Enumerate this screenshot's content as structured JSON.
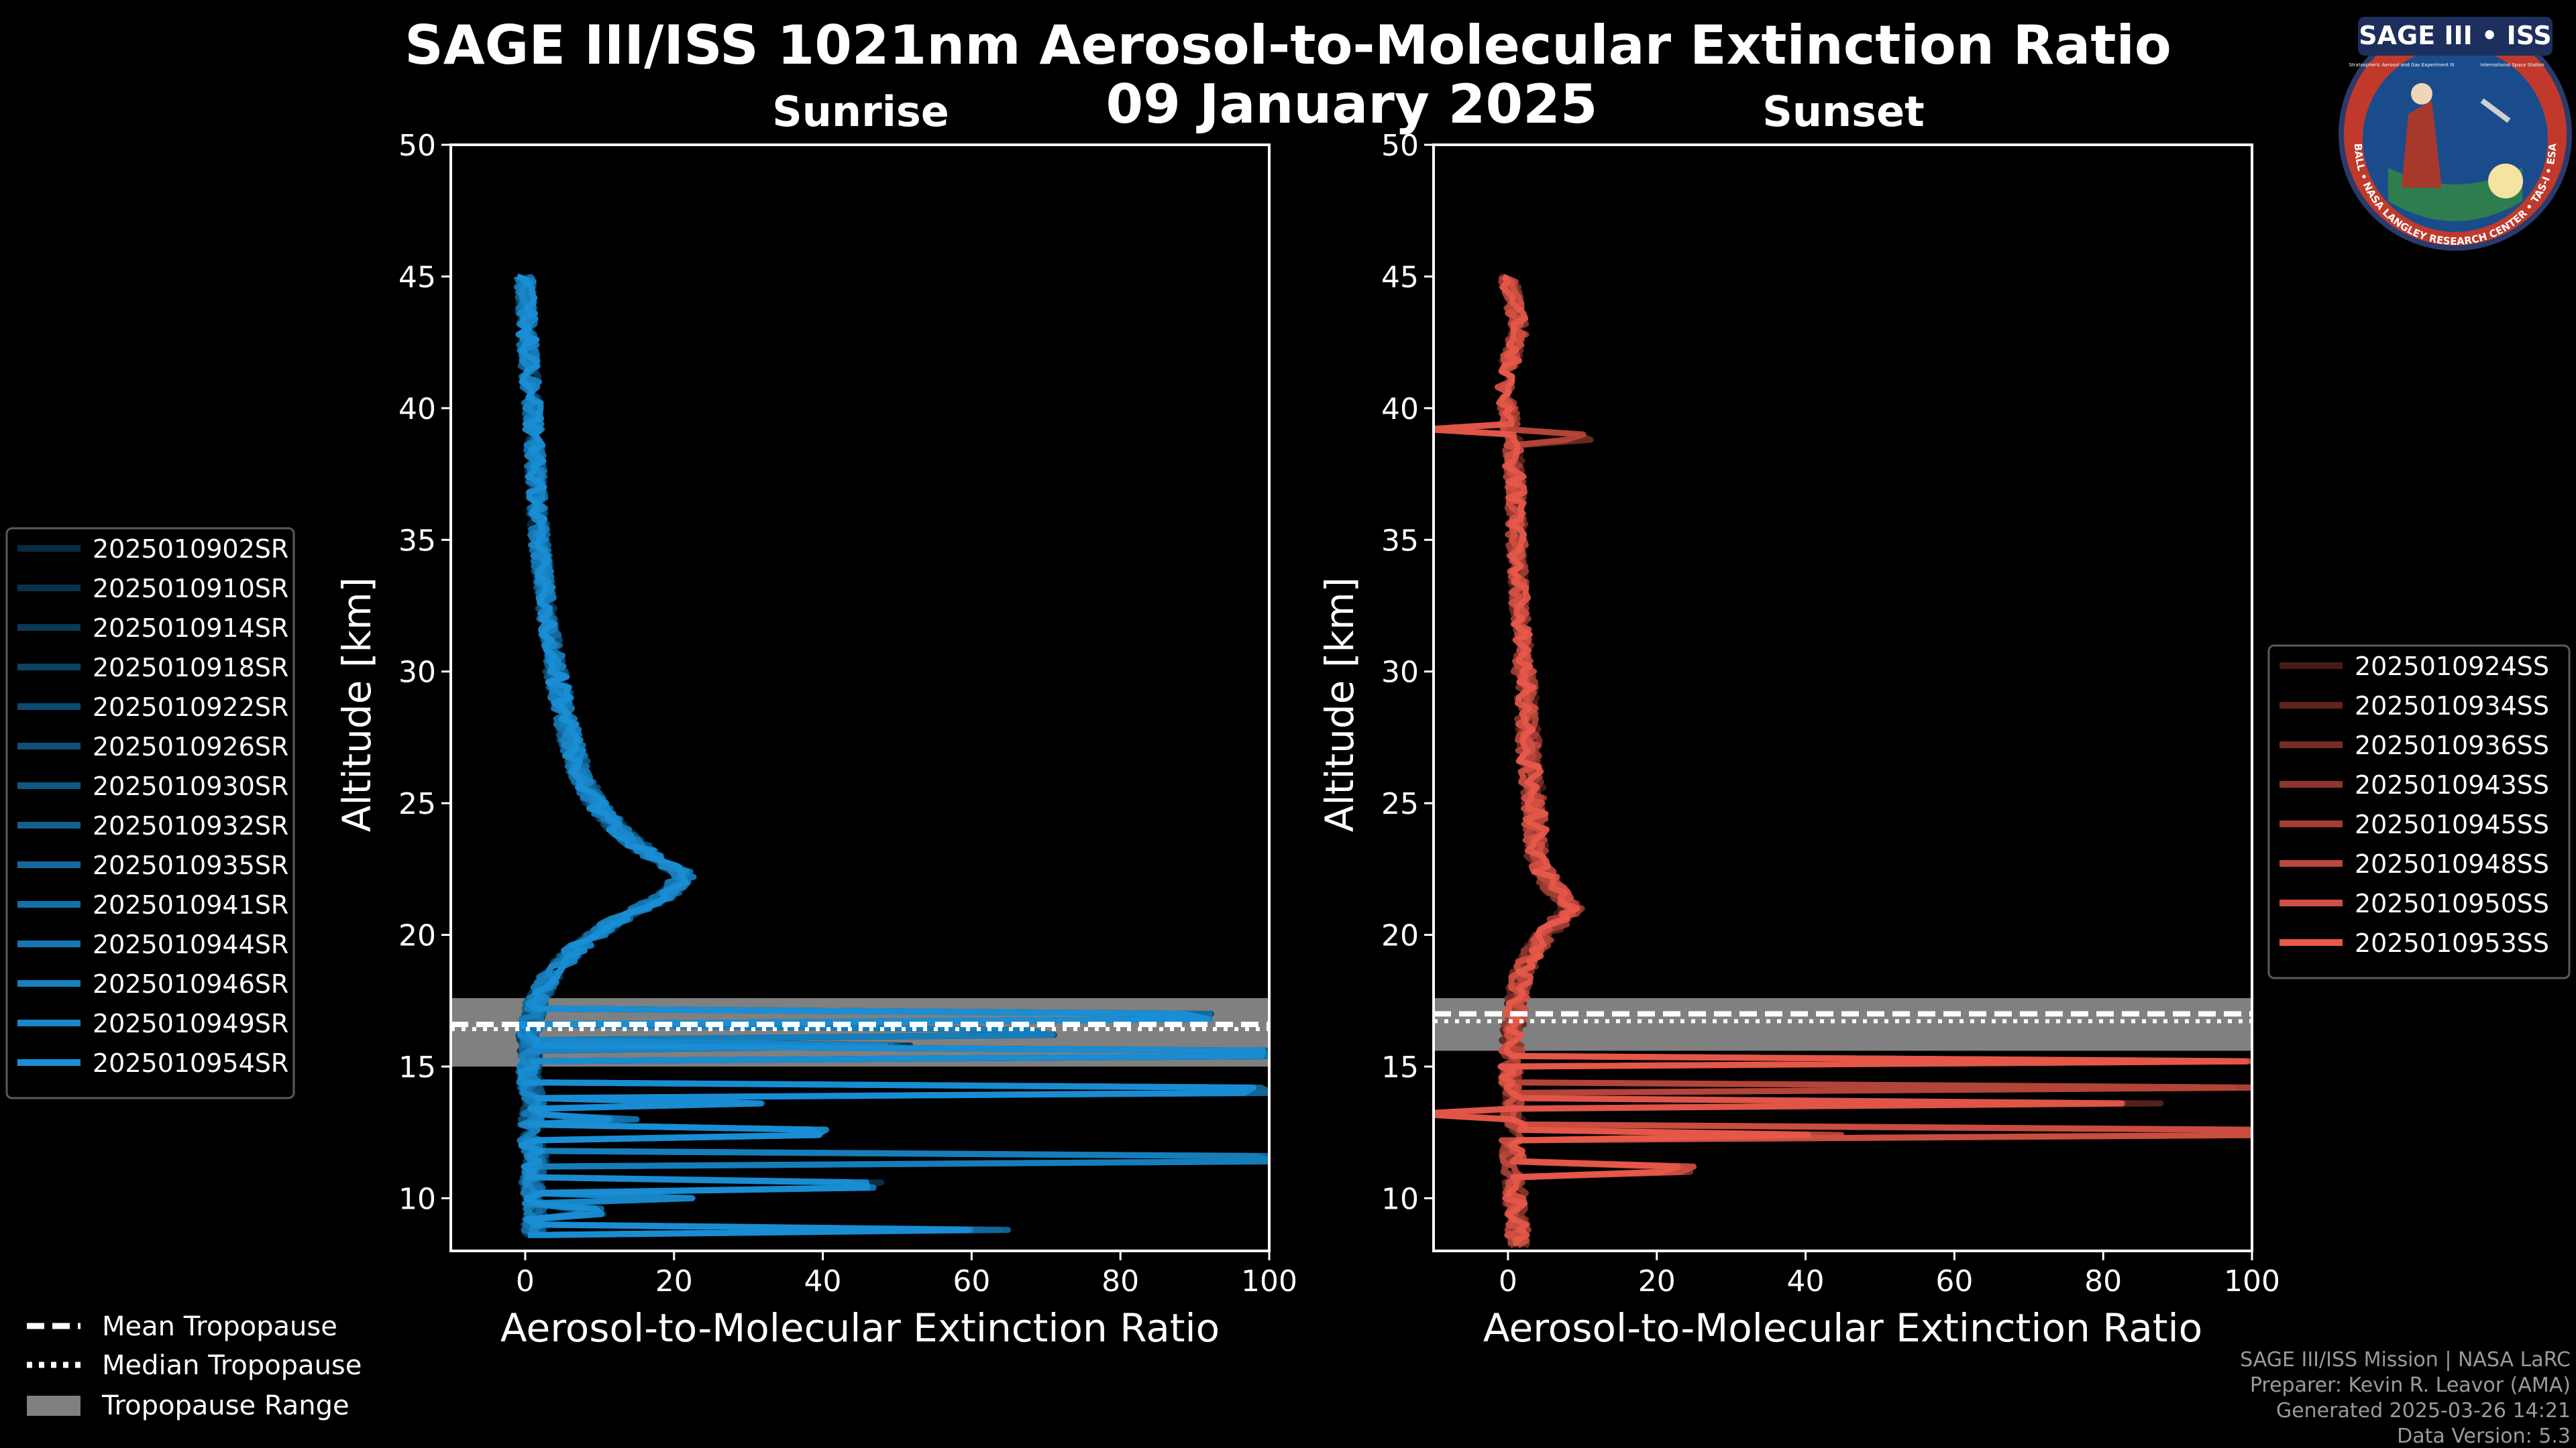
{
  "title": "SAGE III/ISS 1021nm Aerosol-to-Molecular Extinction Ratio",
  "date": "09 January 2025",
  "logo": {
    "text": "SAGE III • ISS",
    "small_left": "Stratospheric Aerosol and Gas Experiment III",
    "small_right": "International Space Station",
    "ring_text": "BALL • NASA LANGLEY RESEARCH CENTER • TAS-I • ESA",
    "colors": {
      "ring": "#c0392b",
      "inner": "#1a4c8c"
    }
  },
  "footer": {
    "line1": "SAGE III/ISS Mission | NASA LaRC",
    "line2": "Preparer: Kevin R. Leavor (AMA)",
    "line3": "Generated 2025-03-26 14:21",
    "line4": "Data Version: 5.3"
  },
  "tropopause_legend": [
    {
      "label": "Mean Tropopause",
      "style": "dashed"
    },
    {
      "label": "Median Tropopause",
      "style": "dotted"
    },
    {
      "label": "Tropopause Range",
      "style": "band"
    }
  ],
  "colors": {
    "sunrise": "#1a8fd6",
    "sunset": "#e8594a",
    "band": "#808080"
  },
  "chart_data": [
    {
      "type": "line",
      "panel": "sunrise",
      "title": "Sunrise",
      "xlabel": "Aerosol-to-Molecular Extinction Ratio",
      "ylabel": "Altitude [km]",
      "xlim": [
        -10,
        100
      ],
      "ylim": [
        8,
        50
      ],
      "xticks": [
        0,
        20,
        40,
        60,
        80,
        100
      ],
      "yticks": [
        10,
        15,
        20,
        25,
        30,
        35,
        40,
        45,
        50
      ],
      "tropopause": {
        "mean": 16.6,
        "median": 16.6,
        "range": [
          15.0,
          17.6
        ]
      },
      "series": [
        {
          "name": "2025010902SR"
        },
        {
          "name": "2025010910SR"
        },
        {
          "name": "2025010914SR"
        },
        {
          "name": "2025010918SR"
        },
        {
          "name": "2025010922SR"
        },
        {
          "name": "2025010926SR"
        },
        {
          "name": "2025010930SR"
        },
        {
          "name": "2025010932SR"
        },
        {
          "name": "2025010935SR"
        },
        {
          "name": "2025010941SR"
        },
        {
          "name": "2025010944SR"
        },
        {
          "name": "2025010946SR"
        },
        {
          "name": "2025010949SR"
        },
        {
          "name": "2025010954SR"
        }
      ],
      "base_profile": {
        "alt": [
          45,
          42,
          40,
          37,
          35,
          32,
          30,
          28,
          26,
          25,
          24,
          23,
          22.3,
          21.5,
          20.5,
          19.5,
          18.5,
          17.5,
          16.5,
          15.5,
          14.5,
          13.5,
          12.5,
          11.5,
          10.5,
          9.5,
          8.5
        ],
        "val": [
          0,
          0.4,
          1.0,
          1.5,
          1.9,
          3.0,
          4.2,
          5.5,
          7.5,
          9.5,
          12.5,
          17,
          21.5,
          19,
          12,
          7,
          3.5,
          1.5,
          0.5,
          0.8,
          0.5,
          1.2,
          0.4,
          1.5,
          0.8,
          1.5,
          1.0
        ]
      },
      "spikes": [
        {
          "alt": 16.9,
          "val": 90
        },
        {
          "alt": 16.3,
          "val": 70
        },
        {
          "alt": 15.5,
          "val": 100
        },
        {
          "alt": 15.8,
          "val": 50
        },
        {
          "alt": 14.1,
          "val": 98
        },
        {
          "alt": 13.6,
          "val": 30
        },
        {
          "alt": 12.5,
          "val": 38
        },
        {
          "alt": 11.5,
          "val": 100
        },
        {
          "alt": 10.5,
          "val": 45
        },
        {
          "alt": 10.0,
          "val": 20
        },
        {
          "alt": 8.8,
          "val": 62
        },
        {
          "alt": 13.0,
          "val": 12
        },
        {
          "alt": 9.5,
          "val": 8
        }
      ]
    },
    {
      "type": "line",
      "panel": "sunset",
      "title": "Sunset",
      "xlabel": "Aerosol-to-Molecular Extinction Ratio",
      "ylabel": "Altitude [km]",
      "xlim": [
        -10,
        100
      ],
      "ylim": [
        8,
        50
      ],
      "xticks": [
        0,
        20,
        40,
        60,
        80,
        100
      ],
      "yticks": [
        10,
        15,
        20,
        25,
        30,
        35,
        40,
        45,
        50
      ],
      "tropopause": {
        "mean": 17.0,
        "median": 16.9,
        "range": [
          15.6,
          17.6
        ]
      },
      "series": [
        {
          "name": "2025010924SS"
        },
        {
          "name": "2025010934SS"
        },
        {
          "name": "2025010936SS"
        },
        {
          "name": "2025010943SS"
        },
        {
          "name": "2025010945SS"
        },
        {
          "name": "2025010948SS"
        },
        {
          "name": "2025010950SS"
        },
        {
          "name": "2025010953SS"
        }
      ],
      "base_profile": {
        "alt": [
          45,
          43,
          41,
          39,
          37,
          35,
          33,
          31,
          29,
          27,
          25,
          23,
          22,
          21,
          20,
          19,
          18,
          17,
          16,
          15,
          14,
          13,
          12,
          11,
          10,
          9,
          8
        ],
        "val": [
          0,
          1.5,
          -0.5,
          0.5,
          1.0,
          1.2,
          1.5,
          2.0,
          2.5,
          2.8,
          3.5,
          4.0,
          5.5,
          8.5,
          5.0,
          2.5,
          1.5,
          1.0,
          0.5,
          0.5,
          0.5,
          0.8,
          0.6,
          0.8,
          1.0,
          1.2,
          1.5
        ]
      },
      "spikes": [
        {
          "alt": 15.2,
          "val": 100
        },
        {
          "alt": 14.2,
          "val": 100
        },
        {
          "alt": 13.2,
          "val": -10
        },
        {
          "alt": 12.5,
          "val": 100
        },
        {
          "alt": 12.4,
          "val": 42
        },
        {
          "alt": 13.6,
          "val": 85
        },
        {
          "alt": 11.1,
          "val": 22
        },
        {
          "alt": 38.9,
          "val": 10
        },
        {
          "alt": 39.2,
          "val": -9
        }
      ]
    }
  ]
}
